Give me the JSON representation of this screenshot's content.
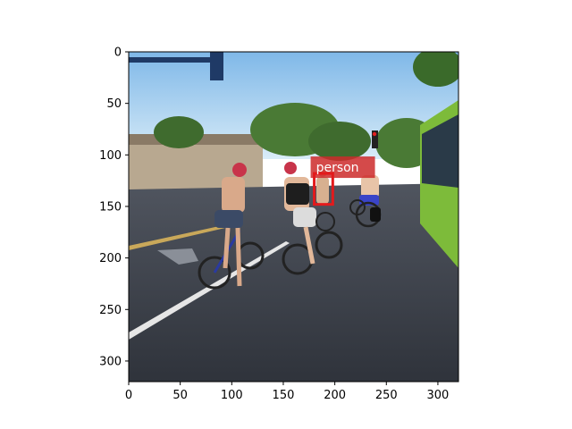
{
  "image": {
    "description_free": true,
    "x_axis": {
      "min": 0,
      "max": 320,
      "ticks": [
        "0",
        "50",
        "100",
        "150",
        "200",
        "250",
        "300"
      ]
    },
    "y_axis": {
      "min": 0,
      "max": 320,
      "inverted": true,
      "ticks": [
        "0",
        "50",
        "100",
        "150",
        "200",
        "250",
        "300"
      ]
    }
  },
  "detections": [
    {
      "label": "person",
      "box_color": "#e31a1c",
      "label_bg": "#cc2a2a",
      "x0": 180,
      "y0": 118,
      "x1": 198,
      "y1": 148
    }
  ],
  "palette": {
    "sky_top": "#7fb8e8",
    "sky_bottom": "#d9ecf8",
    "road": "#3a3f4a",
    "trees": "#3f6b2e",
    "bus": "#7dbb3a",
    "building": "#b8a890"
  }
}
